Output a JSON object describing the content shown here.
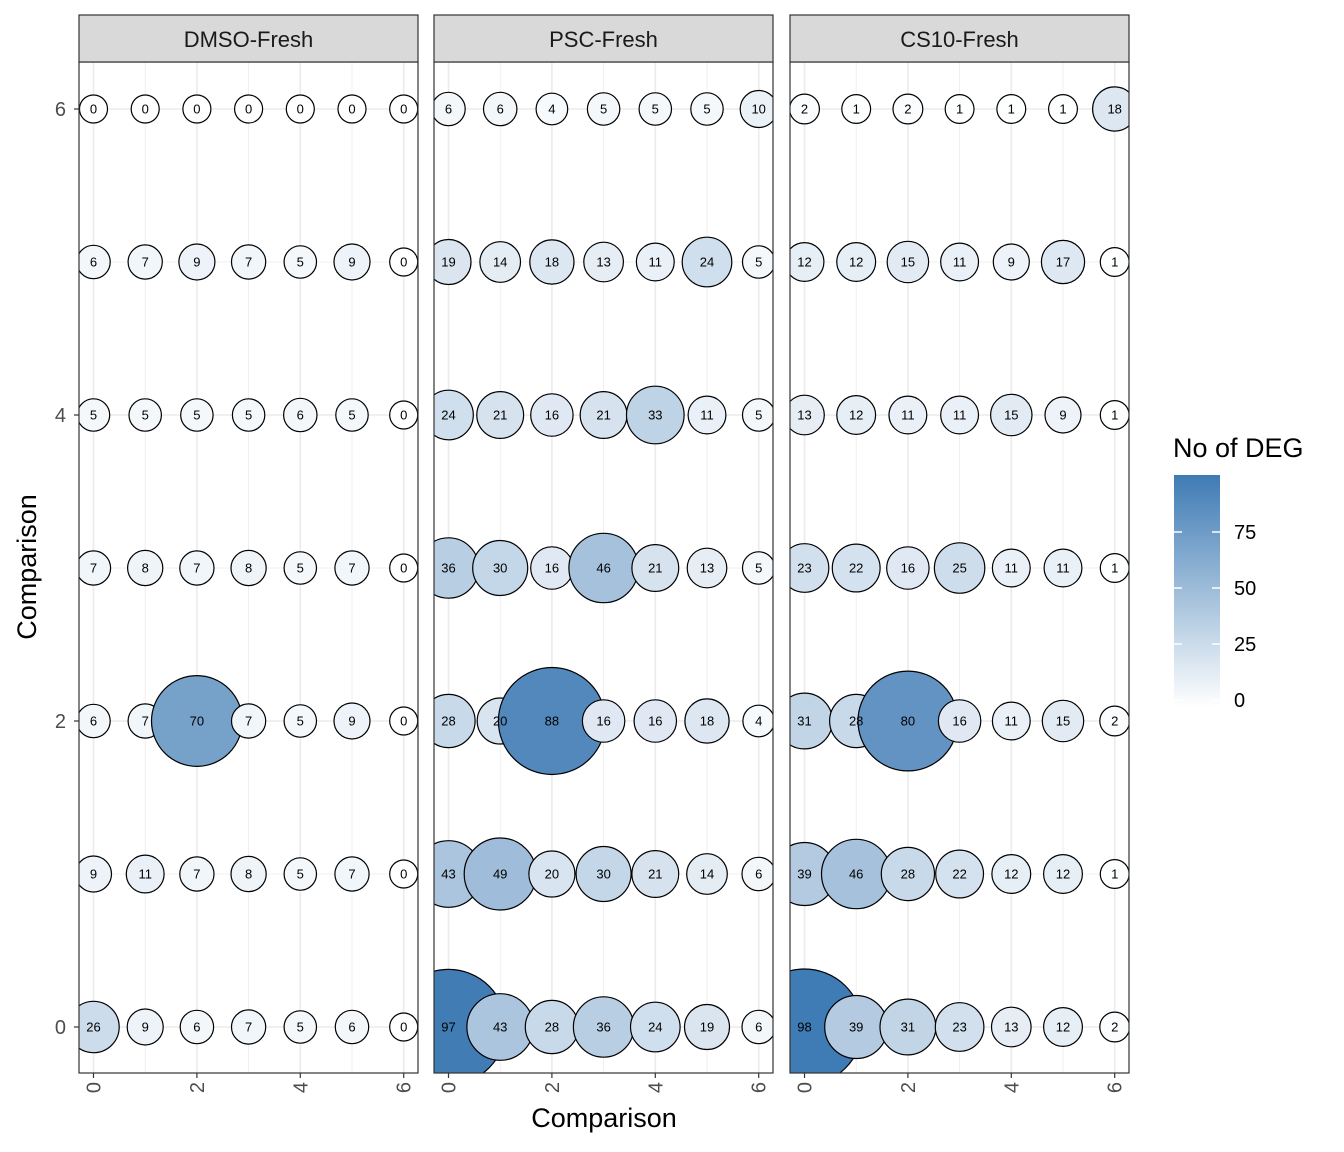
{
  "chart_data": {
    "type": "scatter",
    "subtype": "bubble",
    "xlabel": "Comparison",
    "ylabel": "Comparison",
    "xlim": [
      0,
      6
    ],
    "ylim": [
      0,
      6
    ],
    "x_ticks": [
      "0",
      "2",
      "4",
      "6"
    ],
    "y_ticks": [
      "0",
      "2",
      "4",
      "6"
    ],
    "grid": true,
    "legend": {
      "title": "No of DEG",
      "position": "right",
      "ticks": [
        "0",
        "25",
        "50",
        "75"
      ],
      "color_low": "#ffffff",
      "color_high": "#3f7bb4",
      "range": [
        0,
        98
      ]
    },
    "colors": {
      "low": "#ffffff",
      "high": "#3f7bb4",
      "strip_bg": "#d9d9d9",
      "grid": "#ebebeb"
    },
    "facets": [
      {
        "name": "DMSO-Fresh",
        "rows": [
          {
            "y": 0,
            "values": [
              26,
              9,
              6,
              7,
              5,
              6,
              0
            ]
          },
          {
            "y": 1,
            "values": [
              9,
              11,
              7,
              8,
              5,
              7,
              0
            ]
          },
          {
            "y": 2,
            "values": [
              6,
              7,
              70,
              7,
              5,
              9,
              0
            ]
          },
          {
            "y": 3,
            "values": [
              7,
              8,
              7,
              8,
              5,
              7,
              0
            ]
          },
          {
            "y": 4,
            "values": [
              5,
              5,
              5,
              5,
              6,
              5,
              0
            ]
          },
          {
            "y": 5,
            "values": [
              6,
              7,
              9,
              7,
              5,
              9,
              0
            ]
          },
          {
            "y": 6,
            "values": [
              0,
              0,
              0,
              0,
              0,
              0,
              0
            ]
          }
        ]
      },
      {
        "name": "PSC-Fresh",
        "rows": [
          {
            "y": 0,
            "values": [
              97,
              43,
              28,
              36,
              24,
              19,
              6
            ]
          },
          {
            "y": 1,
            "values": [
              43,
              49,
              20,
              30,
              21,
              14,
              6
            ]
          },
          {
            "y": 2,
            "values": [
              28,
              20,
              88,
              16,
              16,
              18,
              4
            ]
          },
          {
            "y": 3,
            "values": [
              36,
              30,
              16,
              46,
              21,
              13,
              5
            ]
          },
          {
            "y": 4,
            "values": [
              24,
              21,
              16,
              21,
              33,
              11,
              5
            ]
          },
          {
            "y": 5,
            "values": [
              19,
              14,
              18,
              13,
              11,
              24,
              5
            ]
          },
          {
            "y": 6,
            "values": [
              6,
              6,
              4,
              5,
              5,
              5,
              10
            ]
          }
        ]
      },
      {
        "name": "CS10-Fresh",
        "rows": [
          {
            "y": 0,
            "values": [
              98,
              39,
              31,
              23,
              13,
              12,
              2
            ]
          },
          {
            "y": 1,
            "values": [
              39,
              46,
              28,
              22,
              12,
              12,
              1
            ]
          },
          {
            "y": 2,
            "values": [
              31,
              28,
              80,
              16,
              11,
              15,
              2
            ]
          },
          {
            "y": 3,
            "values": [
              23,
              22,
              16,
              25,
              11,
              11,
              1
            ]
          },
          {
            "y": 4,
            "values": [
              13,
              12,
              11,
              11,
              15,
              9,
              1
            ]
          },
          {
            "y": 5,
            "values": [
              12,
              12,
              15,
              11,
              9,
              17,
              1
            ]
          },
          {
            "y": 6,
            "values": [
              2,
              1,
              2,
              1,
              1,
              1,
              18
            ]
          }
        ]
      }
    ]
  }
}
